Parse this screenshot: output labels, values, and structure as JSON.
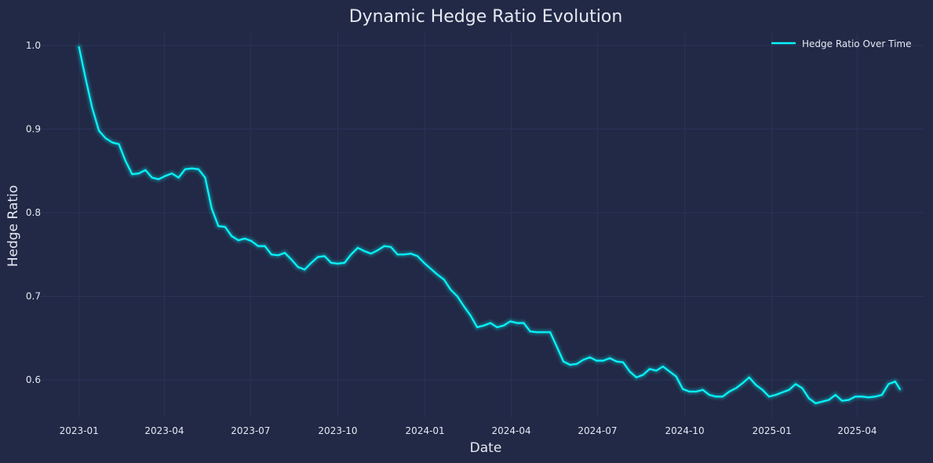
{
  "colors": {
    "background": "#212946",
    "grid": "#2a3459",
    "line": "#08F7FE",
    "text": "#e6e9f2"
  },
  "chart_data": {
    "type": "line",
    "title": "Dynamic Hedge Ratio Evolution",
    "xlabel": "Date",
    "ylabel": "Hedge Ratio",
    "xlim": [
      "2022-11-20",
      "2025-06-10"
    ],
    "ylim": [
      0.555,
      1.015
    ],
    "grid": true,
    "legend": {
      "position": "top-right",
      "entries": [
        "Hedge Ratio Over Time"
      ]
    },
    "xticks": [
      "2023-01",
      "2023-04",
      "2023-07",
      "2023-10",
      "2024-01",
      "2024-04",
      "2024-07",
      "2024-10",
      "2025-01",
      "2025-04"
    ],
    "yticks": [
      "0.6",
      "0.7",
      "0.8",
      "0.9",
      "1.0"
    ],
    "series": [
      {
        "name": "Hedge Ratio Over Time",
        "x": [
          "2023-01-01",
          "2023-01-08",
          "2023-01-15",
          "2023-01-22",
          "2023-01-29",
          "2023-02-05",
          "2023-02-12",
          "2023-02-19",
          "2023-02-26",
          "2023-03-05",
          "2023-03-12",
          "2023-03-19",
          "2023-03-26",
          "2023-04-02",
          "2023-04-09",
          "2023-04-16",
          "2023-04-23",
          "2023-04-30",
          "2023-05-07",
          "2023-05-14",
          "2023-05-21",
          "2023-05-28",
          "2023-06-04",
          "2023-06-11",
          "2023-06-18",
          "2023-06-25",
          "2023-07-02",
          "2023-07-09",
          "2023-07-16",
          "2023-07-23",
          "2023-07-30",
          "2023-08-06",
          "2023-08-13",
          "2023-08-20",
          "2023-08-27",
          "2023-09-03",
          "2023-09-10",
          "2023-09-17",
          "2023-09-24",
          "2023-10-01",
          "2023-10-08",
          "2023-10-15",
          "2023-10-22",
          "2023-10-29",
          "2023-11-05",
          "2023-11-12",
          "2023-11-19",
          "2023-11-26",
          "2023-12-03",
          "2023-12-10",
          "2023-12-17",
          "2023-12-24",
          "2023-12-31",
          "2024-01-07",
          "2024-01-14",
          "2024-01-21",
          "2024-01-28",
          "2024-02-04",
          "2024-02-11",
          "2024-02-18",
          "2024-02-25",
          "2024-03-03",
          "2024-03-10",
          "2024-03-17",
          "2024-03-24",
          "2024-03-31",
          "2024-04-07",
          "2024-04-14",
          "2024-04-21",
          "2024-04-28",
          "2024-05-05",
          "2024-05-12",
          "2024-05-19",
          "2024-05-26",
          "2024-06-02",
          "2024-06-09",
          "2024-06-16",
          "2024-06-23",
          "2024-06-30",
          "2024-07-07",
          "2024-07-14",
          "2024-07-21",
          "2024-07-28",
          "2024-08-04",
          "2024-08-11",
          "2024-08-18",
          "2024-08-25",
          "2024-09-01",
          "2024-09-08",
          "2024-09-15",
          "2024-09-22",
          "2024-09-29",
          "2024-10-06",
          "2024-10-13",
          "2024-10-20",
          "2024-10-27",
          "2024-11-03",
          "2024-11-10",
          "2024-11-17",
          "2024-11-24",
          "2024-12-01",
          "2024-12-08",
          "2024-12-15",
          "2024-12-22",
          "2024-12-29",
          "2025-01-05",
          "2025-01-12",
          "2025-01-19",
          "2025-01-26",
          "2025-02-02",
          "2025-02-09",
          "2025-02-16",
          "2025-02-23",
          "2025-03-02",
          "2025-03-09",
          "2025-03-16",
          "2025-03-23",
          "2025-03-30",
          "2025-04-06",
          "2025-04-13",
          "2025-04-20",
          "2025-04-27",
          "2025-05-04",
          "2025-05-11",
          "2025-05-16"
        ],
        "y": [
          0.998,
          0.96,
          0.925,
          0.898,
          0.889,
          0.884,
          0.882,
          0.862,
          0.846,
          0.847,
          0.851,
          0.842,
          0.84,
          0.844,
          0.847,
          0.842,
          0.852,
          0.853,
          0.852,
          0.842,
          0.805,
          0.784,
          0.783,
          0.772,
          0.767,
          0.769,
          0.766,
          0.76,
          0.76,
          0.75,
          0.749,
          0.752,
          0.744,
          0.735,
          0.732,
          0.74,
          0.747,
          0.748,
          0.74,
          0.739,
          0.74,
          0.75,
          0.758,
          0.754,
          0.751,
          0.755,
          0.76,
          0.759,
          0.75,
          0.75,
          0.751,
          0.748,
          0.74,
          0.733,
          0.726,
          0.72,
          0.708,
          0.7,
          0.688,
          0.677,
          0.663,
          0.665,
          0.668,
          0.663,
          0.665,
          0.67,
          0.668,
          0.668,
          0.658,
          0.657,
          0.657,
          0.657,
          0.64,
          0.622,
          0.618,
          0.619,
          0.624,
          0.627,
          0.623,
          0.623,
          0.626,
          0.622,
          0.621,
          0.61,
          0.603,
          0.606,
          0.613,
          0.611,
          0.616,
          0.61,
          0.604,
          0.589,
          0.586,
          0.586,
          0.588,
          0.582,
          0.58,
          0.58,
          0.586,
          0.59,
          0.596,
          0.603,
          0.594,
          0.588,
          0.58,
          0.582,
          0.585,
          0.588,
          0.595,
          0.59,
          0.578,
          0.572,
          0.574,
          0.576,
          0.582,
          0.575,
          0.576,
          0.58,
          0.58,
          0.579,
          0.58,
          0.582,
          0.595,
          0.598,
          0.589
        ]
      }
    ]
  }
}
